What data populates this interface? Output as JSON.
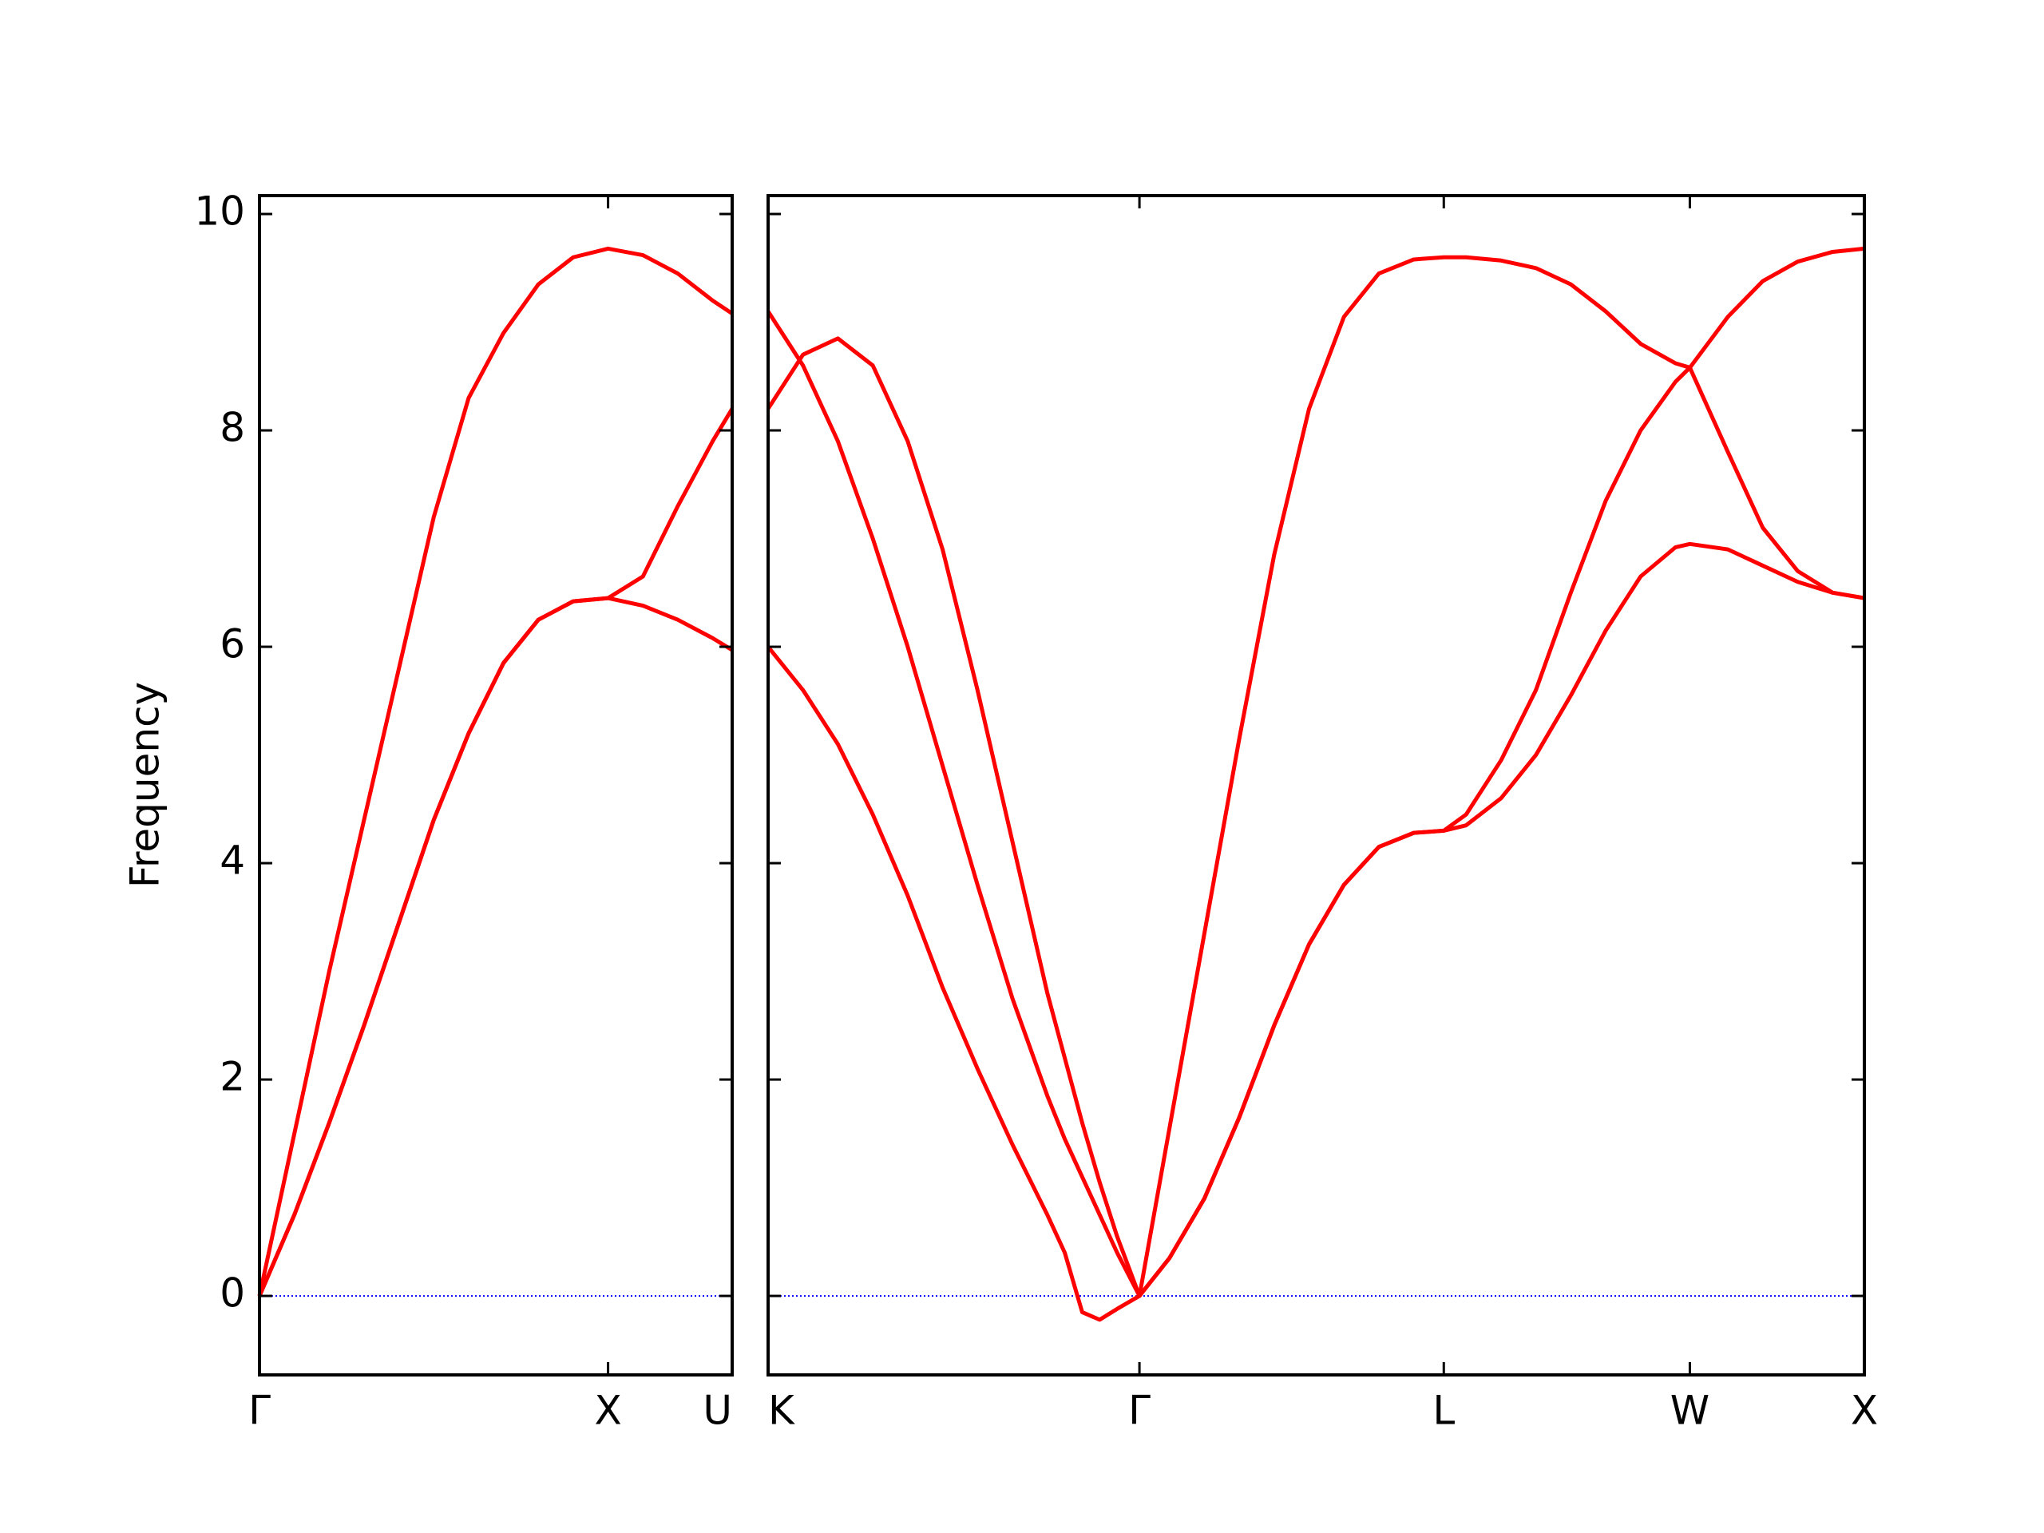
{
  "chart_data": [
    {
      "type": "line",
      "ylabel": "Frequency",
      "x": [
        0,
        0.1,
        0.2,
        0.3,
        0.4,
        0.5,
        0.6,
        0.7,
        0.8,
        0.9,
        1.0,
        1.1,
        1.2,
        1.3,
        1.356
      ],
      "series": [
        {
          "color": "#ff0000",
          "values": [
            0,
            1.5,
            3.0,
            4.4,
            5.8,
            7.2,
            8.3,
            8.9,
            9.35,
            9.6,
            9.68,
            9.62,
            9.45,
            9.2,
            9.08
          ]
        },
        {
          "color": "#ff0000",
          "values": [
            0,
            0.75,
            1.6,
            2.5,
            3.45,
            4.4,
            5.2,
            5.85,
            6.25,
            6.42,
            6.45,
            6.38,
            6.25,
            6.08,
            5.97
          ]
        },
        {
          "color": "#ff0000",
          "values": [
            0,
            0.75,
            1.6,
            2.5,
            3.45,
            4.4,
            5.2,
            5.85,
            6.25,
            6.42,
            6.45,
            6.65,
            7.3,
            7.9,
            8.2
          ]
        }
      ],
      "xlim": [
        0,
        1.356
      ],
      "xticks": [
        {
          "value": 0,
          "label": "Γ"
        },
        {
          "value": 1,
          "label": "X"
        },
        {
          "value": 1.356,
          "label": "U"
        }
      ],
      "ylim": [
        -0.73,
        10.17
      ],
      "yticks": [
        0,
        2,
        4,
        6,
        8,
        10
      ]
    },
    {
      "type": "line",
      "x": [
        0,
        0.1,
        0.2,
        0.3,
        0.4,
        0.5,
        0.6,
        0.7,
        0.8,
        0.85,
        0.9,
        0.95,
        1.0,
        1.064,
        1.15,
        1.25,
        1.35,
        1.45,
        1.55,
        1.65,
        1.75,
        1.85,
        1.936,
        2.0,
        2.1,
        2.2,
        2.3,
        2.4,
        2.5,
        2.6,
        2.641,
        2.75,
        2.85,
        2.95,
        3.05,
        3.141
      ],
      "series": [
        {
          "color": "#ff0000",
          "values": [
            9.1,
            8.6,
            7.9,
            7.0,
            6.0,
            4.9,
            3.8,
            2.75,
            1.85,
            1.45,
            1.1,
            0.75,
            0.4,
            0,
            1.55,
            3.35,
            5.15,
            6.85,
            8.2,
            9.05,
            9.45,
            9.58,
            9.6,
            9.6,
            9.57,
            9.5,
            9.35,
            9.1,
            8.8,
            8.62,
            8.58,
            9.05,
            9.38,
            9.56,
            9.65,
            9.68
          ]
        },
        {
          "color": "#ff0000",
          "values": [
            8.2,
            8.7,
            8.85,
            8.6,
            7.9,
            6.9,
            5.6,
            4.2,
            2.8,
            2.2,
            1.6,
            1.05,
            0.55,
            0,
            0.35,
            0.9,
            1.65,
            2.5,
            3.25,
            3.8,
            4.15,
            4.28,
            4.3,
            4.45,
            4.95,
            5.6,
            6.5,
            7.35,
            8.0,
            8.45,
            8.58,
            7.8,
            7.1,
            6.7,
            6.5,
            6.45
          ]
        },
        {
          "color": "#ff0000",
          "values": [
            6.0,
            5.6,
            5.1,
            4.45,
            3.7,
            2.85,
            2.1,
            1.4,
            0.75,
            0.4,
            -0.15,
            -0.22,
            -0.12,
            0,
            0.35,
            0.9,
            1.65,
            2.5,
            3.25,
            3.8,
            4.15,
            4.28,
            4.3,
            4.35,
            4.6,
            5.0,
            5.55,
            6.15,
            6.65,
            6.92,
            6.95,
            6.9,
            6.75,
            6.6,
            6.5,
            6.45
          ]
        }
      ],
      "xlim": [
        0,
        3.141
      ],
      "xticks": [
        {
          "value": 0,
          "label": "K"
        },
        {
          "value": 1.064,
          "label": "Γ"
        },
        {
          "value": 1.936,
          "label": "L"
        },
        {
          "value": 2.641,
          "label": "W"
        },
        {
          "value": 3.141,
          "label": "X"
        }
      ],
      "ylim": [
        -0.73,
        10.17
      ]
    }
  ]
}
